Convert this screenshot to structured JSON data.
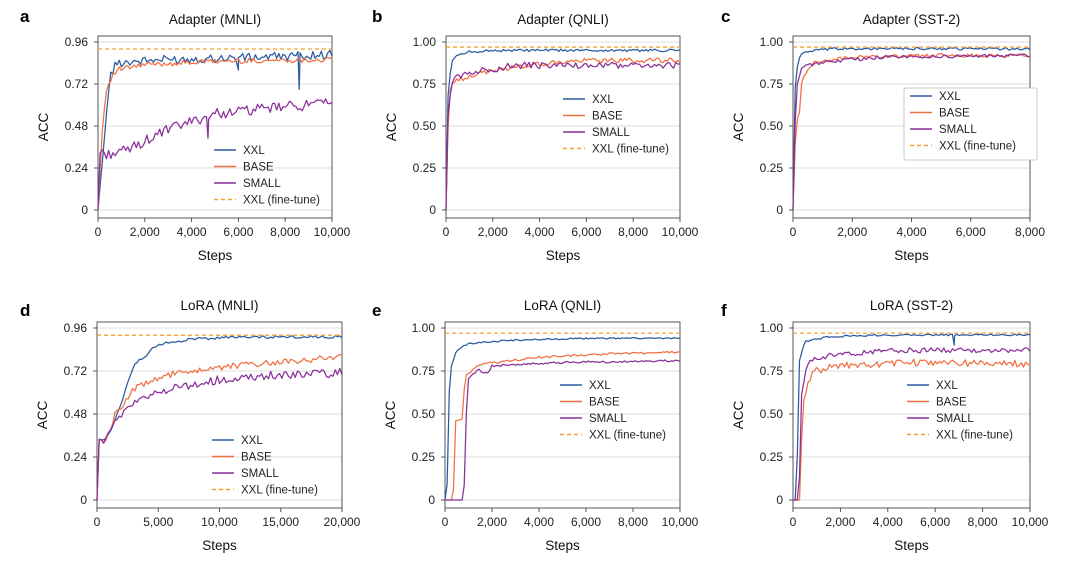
{
  "colors": {
    "XXL": "#2c5aa0",
    "BASE": "#f07040",
    "SMALL": "#8a2f9a",
    "XXL (fine-tune)": "#f5a030"
  },
  "legend_labels": [
    "XXL",
    "BASE",
    "SMALL",
    "XXL (fine-tune)"
  ],
  "chart_data": [
    {
      "type": "line",
      "letter": "a",
      "title": "Adapter (MNLI)",
      "xlabel": "Steps",
      "ylabel": "ACC",
      "xlim": [
        0,
        10000
      ],
      "ylim": [
        0,
        0.96
      ],
      "xticks": [
        0,
        2000,
        4000,
        6000,
        8000,
        10000
      ],
      "xtick_labels": [
        "0",
        "2,000",
        "4,000",
        "6,000",
        "8,000",
        "10,000"
      ],
      "yticks": [
        0,
        0.24,
        0.48,
        0.72,
        0.96
      ],
      "ytick_labels": [
        "0",
        "0.24",
        "0.48",
        "0.72",
        "0.96"
      ],
      "grid": "horizontal",
      "legend": "bottom-right",
      "series": [
        {
          "name": "XXL",
          "noise": 0.025,
          "points": [
            [
              0,
              0
            ],
            [
              200,
              0.3
            ],
            [
              500,
              0.76
            ],
            [
              800,
              0.84
            ],
            [
              1500,
              0.85
            ],
            [
              3000,
              0.86
            ],
            [
              6000,
              0.87
            ],
            [
              8500,
              0.88
            ],
            [
              10000,
              0.89
            ]
          ],
          "dips": [
            [
              8600,
              0.69
            ],
            [
              6000,
              0.8
            ]
          ]
        },
        {
          "name": "BASE",
          "noise": 0.015,
          "points": [
            [
              0,
              0
            ],
            [
              200,
              0.5
            ],
            [
              400,
              0.72
            ],
            [
              800,
              0.8
            ],
            [
              2000,
              0.83
            ],
            [
              5000,
              0.85
            ],
            [
              10000,
              0.86
            ]
          ]
        },
        {
          "name": "SMALL",
          "noise": 0.03,
          "points": [
            [
              0,
              0
            ],
            [
              100,
              0.36
            ],
            [
              300,
              0.32
            ],
            [
              1000,
              0.33
            ],
            [
              1500,
              0.36
            ],
            [
              3000,
              0.46
            ],
            [
              5000,
              0.55
            ],
            [
              8000,
              0.59
            ],
            [
              10000,
              0.61
            ]
          ],
          "dips": [
            [
              4700,
              0.41
            ]
          ]
        },
        {
          "name": "XXL (fine-tune)",
          "dashed": true,
          "points": [
            [
              0,
              0.92
            ],
            [
              10000,
              0.92
            ]
          ]
        }
      ]
    },
    {
      "type": "line",
      "letter": "b",
      "title": "Adapter (QNLI)",
      "xlabel": "Steps",
      "ylabel": "ACC",
      "xlim": [
        0,
        10000
      ],
      "ylim": [
        0,
        1.0
      ],
      "xticks": [
        0,
        2000,
        4000,
        6000,
        8000,
        10000
      ],
      "xtick_labels": [
        "0",
        "2,000",
        "4,000",
        "6,000",
        "8,000",
        "10,000"
      ],
      "yticks": [
        0,
        0.25,
        0.5,
        0.75,
        1.0
      ],
      "ytick_labels": [
        "0",
        "0.25",
        "0.50",
        "0.75",
        "1.00"
      ],
      "grid": "horizontal",
      "legend": "center-right",
      "series": [
        {
          "name": "XXL",
          "noise": 0.008,
          "points": [
            [
              0,
              0
            ],
            [
              100,
              0.75
            ],
            [
              300,
              0.91
            ],
            [
              1000,
              0.94
            ],
            [
              2000,
              0.95
            ],
            [
              10000,
              0.95
            ]
          ]
        },
        {
          "name": "BASE",
          "noise": 0.015,
          "points": [
            [
              0,
              0
            ],
            [
              100,
              0.55
            ],
            [
              200,
              0.75
            ],
            [
              1000,
              0.8
            ],
            [
              2000,
              0.83
            ],
            [
              4000,
              0.87
            ],
            [
              6000,
              0.89
            ],
            [
              10000,
              0.89
            ]
          ]
        },
        {
          "name": "SMALL",
          "noise": 0.02,
          "points": [
            [
              0,
              0
            ],
            [
              100,
              0.62
            ],
            [
              300,
              0.78
            ],
            [
              1000,
              0.82
            ],
            [
              3000,
              0.86
            ],
            [
              10000,
              0.86
            ]
          ]
        },
        {
          "name": "XXL (fine-tune)",
          "dashed": true,
          "points": [
            [
              0,
              0.97
            ],
            [
              10000,
              0.97
            ]
          ]
        }
      ]
    },
    {
      "type": "line",
      "letter": "c",
      "title": "Adapter (SST-2)",
      "xlabel": "Steps",
      "ylabel": "ACC",
      "xlim": [
        0,
        8000
      ],
      "ylim": [
        0,
        1.0
      ],
      "xticks": [
        0,
        2000,
        4000,
        6000,
        8000
      ],
      "xtick_labels": [
        "0",
        "2,000",
        "4,000",
        "6,000",
        "8,000"
      ],
      "yticks": [
        0,
        0.25,
        0.5,
        0.75,
        1.0
      ],
      "ytick_labels": [
        "0",
        "0.25",
        "0.50",
        "0.75",
        "1.00"
      ],
      "grid": "horizontal",
      "legend": "center-right",
      "series": [
        {
          "name": "XXL",
          "noise": 0.008,
          "points": [
            [
              0,
              0
            ],
            [
              80,
              0.8
            ],
            [
              250,
              0.93
            ],
            [
              800,
              0.95
            ],
            [
              1500,
              0.96
            ],
            [
              8000,
              0.96
            ]
          ]
        },
        {
          "name": "BASE",
          "noise": 0.01,
          "points": [
            [
              0,
              0
            ],
            [
              100,
              0.54
            ],
            [
              200,
              0.54
            ],
            [
              300,
              0.78
            ],
            [
              700,
              0.88
            ],
            [
              2000,
              0.91
            ],
            [
              5000,
              0.92
            ],
            [
              8000,
              0.92
            ]
          ]
        },
        {
          "name": "SMALL",
          "noise": 0.01,
          "points": [
            [
              0,
              0
            ],
            [
              100,
              0.72
            ],
            [
              300,
              0.85
            ],
            [
              1000,
              0.88
            ],
            [
              3000,
              0.91
            ],
            [
              8000,
              0.92
            ]
          ]
        },
        {
          "name": "XXL (fine-tune)",
          "dashed": true,
          "points": [
            [
              0,
              0.97
            ],
            [
              8000,
              0.97
            ]
          ]
        }
      ]
    },
    {
      "type": "line",
      "letter": "d",
      "title": "LoRA (MNLI)",
      "xlabel": "Steps",
      "ylabel": "ACC",
      "xlim": [
        0,
        20000
      ],
      "ylim": [
        0,
        0.96
      ],
      "xticks": [
        0,
        5000,
        10000,
        15000,
        20000
      ],
      "xtick_labels": [
        "0",
        "5,000",
        "10,000",
        "15,000",
        "20,000"
      ],
      "yticks": [
        0,
        0.24,
        0.48,
        0.72,
        0.96
      ],
      "ytick_labels": [
        "0",
        "0.24",
        "0.48",
        "0.72",
        "0.96"
      ],
      "grid": "horizontal",
      "legend": "bottom-right",
      "series": [
        {
          "name": "XXL",
          "noise": 0.008,
          "points": [
            [
              0,
              0
            ],
            [
              100,
              0.34
            ],
            [
              700,
              0.33
            ],
            [
              1500,
              0.45
            ],
            [
              3000,
              0.75
            ],
            [
              5000,
              0.87
            ],
            [
              8000,
              0.9
            ],
            [
              12000,
              0.91
            ],
            [
              20000,
              0.91
            ]
          ]
        },
        {
          "name": "BASE",
          "noise": 0.018,
          "points": [
            [
              0,
              0
            ],
            [
              100,
              0.34
            ],
            [
              700,
              0.33
            ],
            [
              1500,
              0.48
            ],
            [
              3000,
              0.62
            ],
            [
              6000,
              0.7
            ],
            [
              10000,
              0.74
            ],
            [
              15000,
              0.77
            ],
            [
              20000,
              0.8
            ]
          ]
        },
        {
          "name": "SMALL",
          "noise": 0.025,
          "points": [
            [
              0,
              0
            ],
            [
              100,
              0.34
            ],
            [
              700,
              0.33
            ],
            [
              1500,
              0.44
            ],
            [
              3000,
              0.55
            ],
            [
              6000,
              0.62
            ],
            [
              10000,
              0.67
            ],
            [
              15000,
              0.7
            ],
            [
              20000,
              0.71
            ]
          ]
        },
        {
          "name": "XXL (fine-tune)",
          "dashed": true,
          "points": [
            [
              0,
              0.92
            ],
            [
              20000,
              0.92
            ]
          ]
        }
      ]
    },
    {
      "type": "line",
      "letter": "e",
      "title": "LoRA (QNLI)",
      "xlabel": "Steps",
      "ylabel": "ACC",
      "xlim": [
        0,
        10000
      ],
      "ylim": [
        0,
        1.0
      ],
      "xticks": [
        0,
        2000,
        4000,
        6000,
        8000,
        10000
      ],
      "xtick_labels": [
        "0",
        "2,000",
        "4,000",
        "6,000",
        "8,000",
        "10,000"
      ],
      "yticks": [
        0,
        0.25,
        0.5,
        0.75,
        1.0
      ],
      "ytick_labels": [
        "0",
        "0.25",
        "0.50",
        "0.75",
        "1.00"
      ],
      "grid": "horizontal",
      "legend": "center-right",
      "series": [
        {
          "name": "XXL",
          "noise": 0.004,
          "points": [
            [
              0,
              0
            ],
            [
              100,
              0.1
            ],
            [
              200,
              0.75
            ],
            [
              500,
              0.87
            ],
            [
              1000,
              0.91
            ],
            [
              3000,
              0.93
            ],
            [
              6000,
              0.94
            ],
            [
              10000,
              0.94
            ]
          ]
        },
        {
          "name": "BASE",
          "noise": 0.006,
          "points": [
            [
              0,
              0
            ],
            [
              350,
              0
            ],
            [
              450,
              0.46
            ],
            [
              750,
              0.47
            ],
            [
              850,
              0.72
            ],
            [
              1500,
              0.79
            ],
            [
              4000,
              0.83
            ],
            [
              7000,
              0.85
            ],
            [
              10000,
              0.86
            ]
          ]
        },
        {
          "name": "SMALL",
          "noise": 0.006,
          "points": [
            [
              0,
              0
            ],
            [
              800,
              0
            ],
            [
              950,
              0.7
            ],
            [
              1400,
              0.76
            ],
            [
              1800,
              0.73
            ],
            [
              2000,
              0.78
            ],
            [
              5000,
              0.8
            ],
            [
              10000,
              0.81
            ]
          ]
        },
        {
          "name": "XXL (fine-tune)",
          "dashed": true,
          "points": [
            [
              0,
              0.97
            ],
            [
              10000,
              0.97
            ]
          ]
        }
      ]
    },
    {
      "type": "line",
      "letter": "f",
      "title": "LoRA (SST-2)",
      "xlabel": "Steps",
      "ylabel": "ACC",
      "xlim": [
        0,
        10000
      ],
      "ylim": [
        0,
        1.0
      ],
      "xticks": [
        0,
        2000,
        4000,
        6000,
        8000,
        10000
      ],
      "xtick_labels": [
        "0",
        "2,000",
        "4,000",
        "6,000",
        "8,000",
        "10,000"
      ],
      "yticks": [
        0,
        0.25,
        0.5,
        0.75,
        1.0
      ],
      "ytick_labels": [
        "0",
        "0.25",
        "0.50",
        "0.75",
        "1.00"
      ],
      "grid": "horizontal",
      "legend": "center-right",
      "series": [
        {
          "name": "XXL",
          "noise": 0.005,
          "points": [
            [
              0,
              0
            ],
            [
              150,
              0
            ],
            [
              250,
              0.8
            ],
            [
              500,
              0.92
            ],
            [
              1500,
              0.95
            ],
            [
              4000,
              0.96
            ],
            [
              10000,
              0.96
            ]
          ],
          "dips": [
            [
              6800,
              0.9
            ]
          ]
        },
        {
          "name": "BASE",
          "noise": 0.02,
          "points": [
            [
              0,
              0
            ],
            [
              300,
              0
            ],
            [
              400,
              0.55
            ],
            [
              800,
              0.75
            ],
            [
              2000,
              0.78
            ],
            [
              5000,
              0.8
            ],
            [
              10000,
              0.79
            ]
          ]
        },
        {
          "name": "SMALL",
          "noise": 0.015,
          "points": [
            [
              0,
              0
            ],
            [
              250,
              0
            ],
            [
              350,
              0.6
            ],
            [
              600,
              0.8
            ],
            [
              1500,
              0.84
            ],
            [
              4000,
              0.87
            ],
            [
              10000,
              0.87
            ]
          ]
        },
        {
          "name": "XXL (fine-tune)",
          "dashed": true,
          "points": [
            [
              0,
              0.97
            ],
            [
              10000,
              0.97
            ]
          ]
        }
      ]
    }
  ]
}
